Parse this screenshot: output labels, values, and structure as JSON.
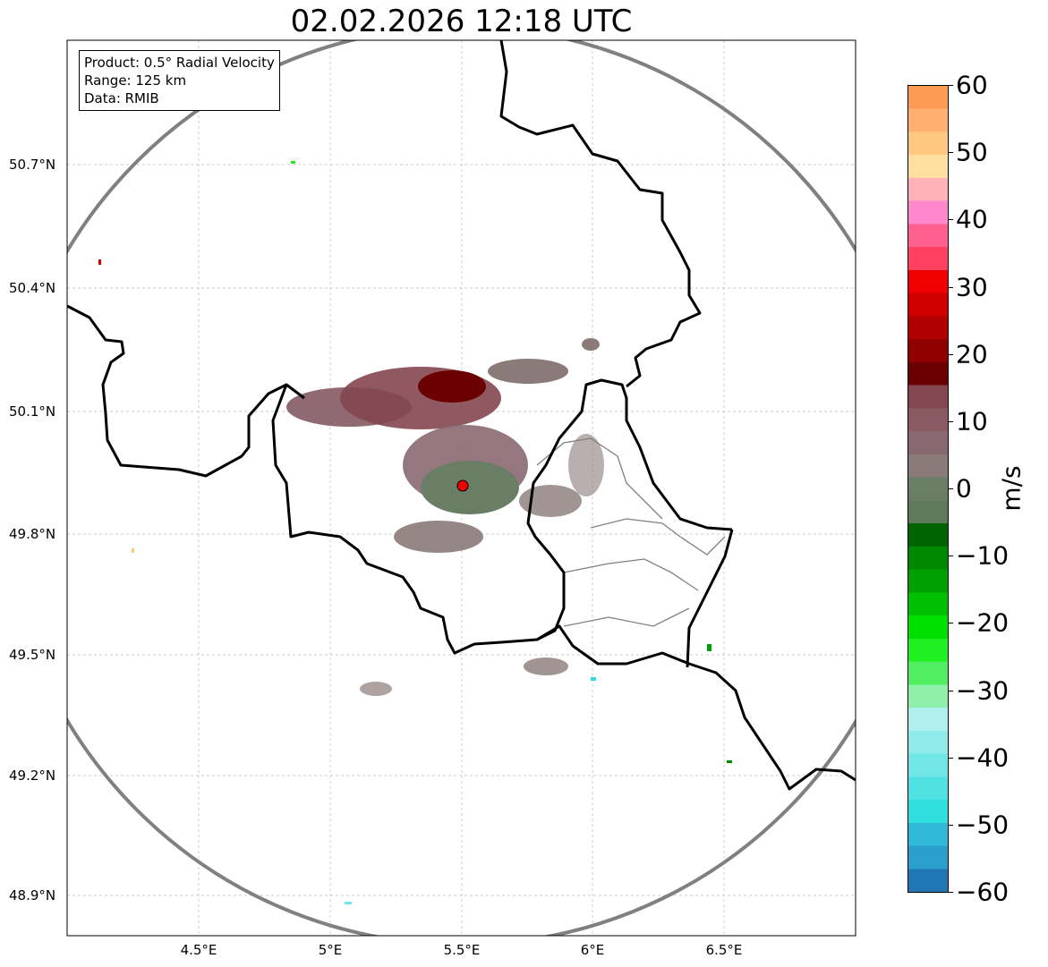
{
  "title": "02.02.2026 12:18 UTC",
  "info": {
    "product": "Product: 0.5° Radial Velocity",
    "range": "Range: 125 km",
    "data": "Data: RMIB"
  },
  "y_ticks": [
    "50.7°N",
    "50.4°N",
    "50.1°N",
    "49.8°N",
    "49.5°N",
    "49.2°N",
    "48.9°N"
  ],
  "x_ticks": [
    "4.5°E",
    "5°E",
    "5.5°E",
    "6°E",
    "6.5°E"
  ],
  "colorbar": {
    "unit": "m/s",
    "ticks": [
      "60",
      "50",
      "40",
      "30",
      "20",
      "10",
      "0",
      "−10",
      "−20",
      "−30",
      "−40",
      "−50",
      "−60"
    ],
    "range": [
      -60,
      60
    ],
    "colors": [
      "#2077b4",
      "#2a9fcc",
      "#2fb8d8",
      "#30dede",
      "#50e2e2",
      "#70e6e6",
      "#90eaea",
      "#b0eeee",
      "#8ff0aa",
      "#50ee60",
      "#20f020",
      "#00e000",
      "#00c000",
      "#00a000",
      "#008800",
      "#006400",
      "#5d7a5a",
      "#6a7e66",
      "#8a7a78",
      "#8a6872",
      "#8a5a62",
      "#844650",
      "#6a0000",
      "#900000",
      "#b00000",
      "#d00000",
      "#f00000",
      "#ff4060",
      "#ff6090",
      "#ff88cc",
      "#ffb0b8",
      "#ffe0a0",
      "#ffc880",
      "#ffb070",
      "#ff9a55"
    ]
  },
  "radar_site": "radar-site"
}
